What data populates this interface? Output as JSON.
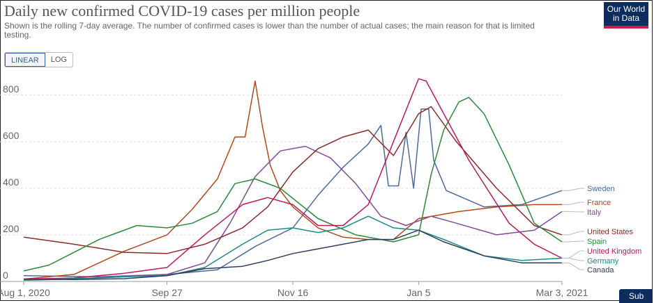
{
  "header": {
    "title": "Daily new confirmed COVID-19 cases per million people",
    "subtitle": "Shown is the rolling 7-day average. The number of confirmed cases is lower than the number of actual cases; the main reason for that is limited testing.",
    "logo_line1": "Our World",
    "logo_line2": "in Data"
  },
  "controls": {
    "linear_label": "LINEAR",
    "log_label": "LOG",
    "active": "linear"
  },
  "footer": {
    "sub_button_label": "Sub"
  },
  "chart_data": {
    "type": "line",
    "title": "Daily new confirmed COVID-19 cases per million people",
    "xlabel": "",
    "ylabel": "",
    "x_start": "2020-08-01",
    "x_end": "2021-03-03",
    "xtick_labels": [
      "Aug 1, 2020",
      "Sep 27",
      "Nov 16",
      "Jan 5",
      "Mar 3, 2021"
    ],
    "xtick_dates": [
      "2020-08-01",
      "2020-09-27",
      "2020-11-16",
      "2021-01-05",
      "2021-03-03"
    ],
    "ylim": [
      0,
      850
    ],
    "yticks": [
      0,
      200,
      400,
      600,
      800
    ],
    "grid": "horizontal dashed",
    "legend_placement": "right",
    "series": [
      {
        "name": "Sweden",
        "color": "#4c6a9c",
        "x": [
          "2020-08-01",
          "2020-08-31",
          "2020-09-27",
          "2020-10-17",
          "2020-11-01",
          "2020-11-16",
          "2020-11-26",
          "2020-12-06",
          "2020-12-16",
          "2020-12-21",
          "2020-12-24",
          "2020-12-28",
          "2020-12-31",
          "2021-01-03",
          "2021-01-06",
          "2021-01-09",
          "2021-01-11",
          "2021-01-16",
          "2021-01-31",
          "2021-02-15",
          "2021-03-03"
        ],
        "values": [
          25,
          20,
          30,
          50,
          150,
          230,
          370,
          490,
          590,
          670,
          410,
          410,
          640,
          400,
          740,
          740,
          520,
          390,
          320,
          330,
          390
        ]
      },
      {
        "name": "France",
        "color": "#b5471c",
        "x": [
          "2020-08-01",
          "2020-08-21",
          "2020-09-10",
          "2020-09-27",
          "2020-10-07",
          "2020-10-17",
          "2020-10-24",
          "2020-10-28",
          "2020-11-01",
          "2020-11-04",
          "2020-11-07",
          "2020-11-11",
          "2020-11-16",
          "2020-11-26",
          "2020-12-06",
          "2020-12-16",
          "2020-12-26",
          "2021-01-05",
          "2021-01-21",
          "2021-02-05",
          "2021-02-20",
          "2021-03-03"
        ],
        "values": [
          10,
          30,
          130,
          200,
          310,
          440,
          620,
          620,
          860,
          660,
          500,
          390,
          320,
          230,
          190,
          180,
          180,
          270,
          300,
          320,
          330,
          330
        ]
      },
      {
        "name": "Italy",
        "color": "#7e4c9a",
        "x": [
          "2020-08-01",
          "2020-08-21",
          "2020-09-10",
          "2020-09-27",
          "2020-10-12",
          "2020-10-22",
          "2020-11-01",
          "2020-11-11",
          "2020-11-21",
          "2020-12-01",
          "2020-12-11",
          "2020-12-21",
          "2020-12-31",
          "2021-01-10",
          "2021-01-20",
          "2021-02-05",
          "2021-02-20",
          "2021-03-03"
        ],
        "values": [
          5,
          10,
          20,
          30,
          80,
          250,
          450,
          560,
          580,
          530,
          420,
          280,
          240,
          280,
          250,
          200,
          220,
          300
        ]
      },
      {
        "name": "United States",
        "color": "#8b2a28",
        "x": [
          "2020-08-01",
          "2020-08-21",
          "2020-09-10",
          "2020-09-27",
          "2020-10-12",
          "2020-10-27",
          "2020-11-06",
          "2020-11-16",
          "2020-11-26",
          "2020-12-06",
          "2020-12-16",
          "2020-12-26",
          "2021-01-05",
          "2021-01-10",
          "2021-01-20",
          "2021-02-05",
          "2021-02-20",
          "2021-03-03"
        ],
        "values": [
          190,
          160,
          125,
          120,
          160,
          230,
          320,
          470,
          570,
          620,
          650,
          540,
          720,
          750,
          600,
          400,
          240,
          200
        ]
      },
      {
        "name": "Spain",
        "color": "#2a8a37",
        "x": [
          "2020-08-01",
          "2020-08-11",
          "2020-08-31",
          "2020-09-15",
          "2020-09-27",
          "2020-10-07",
          "2020-10-17",
          "2020-10-24",
          "2020-11-01",
          "2020-11-11",
          "2020-11-26",
          "2020-12-11",
          "2020-12-26",
          "2021-01-05",
          "2021-01-10",
          "2021-01-15",
          "2021-01-21",
          "2021-01-25",
          "2021-01-31",
          "2021-02-10",
          "2021-02-20",
          "2021-03-03"
        ],
        "values": [
          45,
          70,
          180,
          240,
          230,
          250,
          300,
          420,
          440,
          400,
          270,
          200,
          170,
          200,
          460,
          650,
          770,
          790,
          720,
          500,
          250,
          170
        ]
      },
      {
        "name": "United Kingdom",
        "color": "#c2185b",
        "x": [
          "2020-08-01",
          "2020-08-21",
          "2020-09-10",
          "2020-09-27",
          "2020-10-12",
          "2020-10-27",
          "2020-11-06",
          "2020-11-16",
          "2020-11-26",
          "2020-12-06",
          "2020-12-16",
          "2020-12-26",
          "2021-01-05",
          "2021-01-08",
          "2021-01-15",
          "2021-01-25",
          "2021-02-10",
          "2021-02-20",
          "2021-03-03"
        ],
        "values": [
          10,
          15,
          35,
          60,
          200,
          330,
          360,
          330,
          240,
          240,
          330,
          600,
          870,
          860,
          720,
          520,
          250,
          160,
          100
        ]
      },
      {
        "name": "Germany",
        "color": "#1f8a8a",
        "x": [
          "2020-08-01",
          "2020-08-21",
          "2020-09-10",
          "2020-09-27",
          "2020-10-12",
          "2020-10-27",
          "2020-11-06",
          "2020-11-16",
          "2020-11-26",
          "2020-12-06",
          "2020-12-16",
          "2020-12-26",
          "2021-01-05",
          "2021-01-15",
          "2021-01-31",
          "2021-02-15",
          "2021-03-03"
        ],
        "values": [
          8,
          12,
          20,
          25,
          60,
          160,
          220,
          230,
          210,
          230,
          280,
          230,
          220,
          180,
          110,
          90,
          100
        ]
      },
      {
        "name": "Canada",
        "color": "#2d3e5c",
        "x": [
          "2020-08-01",
          "2020-08-21",
          "2020-09-10",
          "2020-09-27",
          "2020-10-12",
          "2020-10-27",
          "2020-11-06",
          "2020-11-16",
          "2020-11-26",
          "2020-12-06",
          "2020-12-16",
          "2020-12-26",
          "2021-01-05",
          "2021-01-15",
          "2021-01-31",
          "2021-02-15",
          "2021-03-03"
        ],
        "values": [
          10,
          8,
          12,
          25,
          55,
          65,
          90,
          120,
          140,
          160,
          180,
          180,
          220,
          170,
          110,
          80,
          80
        ]
      }
    ]
  }
}
